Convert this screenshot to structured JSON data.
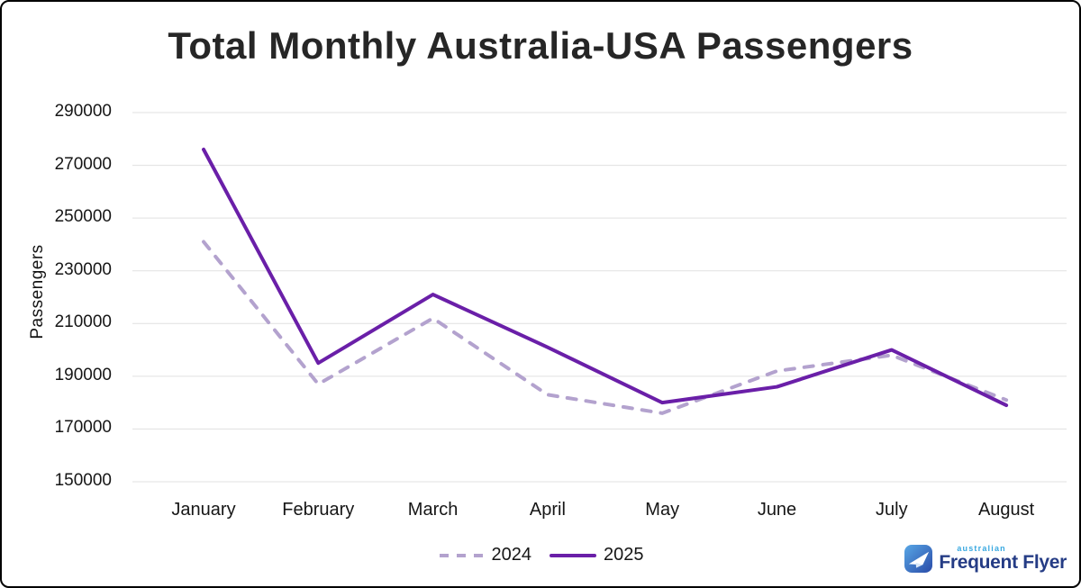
{
  "chart_data": {
    "type": "line",
    "title": "Total Monthly Australia-USA Passengers",
    "categories": [
      "January",
      "February",
      "March",
      "April",
      "May",
      "June",
      "July",
      "August"
    ],
    "series": [
      {
        "name": "2024",
        "line_style": "dashed",
        "color": "#b3a2ce",
        "values": [
          241000,
          187000,
          212000,
          183000,
          176000,
          192000,
          198000,
          181000
        ]
      },
      {
        "name": "2025",
        "line_style": "solid",
        "color": "#6a1fa8",
        "values": [
          276000,
          195000,
          221000,
          201000,
          180000,
          186000,
          200000,
          179000
        ]
      }
    ],
    "xlabel": "",
    "ylabel": "Passengers",
    "ylim": [
      150000,
      290000
    ],
    "ytick_step": 20000,
    "ytick_labels": [
      "150000",
      "170000",
      "190000",
      "210000",
      "230000",
      "250000",
      "270000",
      "290000"
    ],
    "grid": "horizontal-only",
    "legend_position": "bottom-center"
  },
  "legend": {
    "items": [
      "2024",
      "2025"
    ]
  },
  "logo": {
    "brand_top": "australian",
    "brand_name": "Frequent Flyer",
    "icon": "paper-plane-icon",
    "icon_gradient": [
      "#58a7e6",
      "#2a4ba8"
    ],
    "brand_top_color": "#38a8e0",
    "brand_name_color": "#253c85"
  },
  "frame": {
    "border_color": "#000000",
    "background": "#ffffff"
  }
}
